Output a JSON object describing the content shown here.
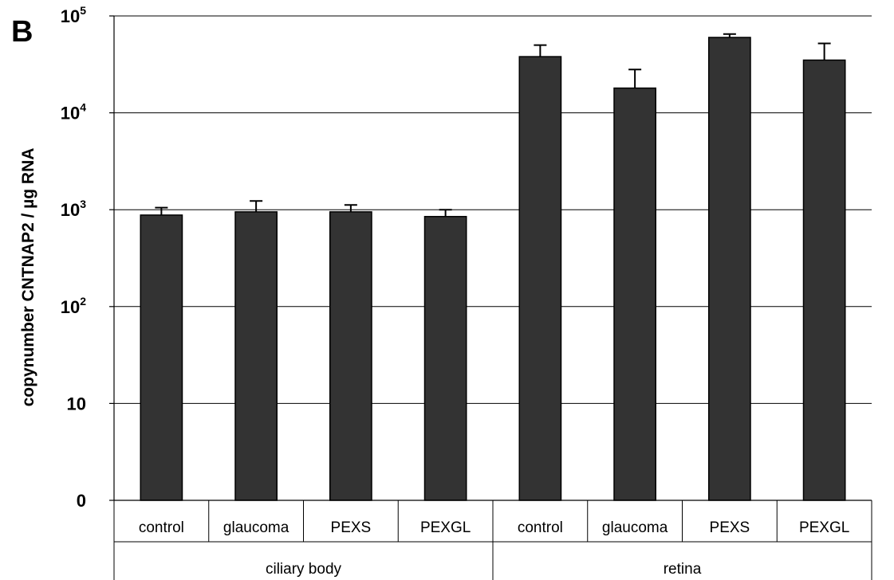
{
  "panel_label": "B",
  "chart_data": {
    "type": "bar",
    "scale": "log",
    "ylabel": "copynumber CNTNAP2 / µg RNA",
    "ylim": [
      1,
      100000
    ],
    "y_ticks": [
      {
        "value": 1,
        "base": "0",
        "exp": ""
      },
      {
        "value": 10,
        "base": "10",
        "exp": ""
      },
      {
        "value": 100,
        "base": "10",
        "exp": "2"
      },
      {
        "value": 1000,
        "base": "10",
        "exp": "3"
      },
      {
        "value": 10000,
        "base": "10",
        "exp": "4"
      },
      {
        "value": 100000,
        "base": "10",
        "exp": "5"
      }
    ],
    "grid": true,
    "groups": [
      {
        "label": "ciliary body",
        "categories": [
          "control",
          "glaucoma",
          "PEXS",
          "PEXGL"
        ]
      },
      {
        "label": "retina",
        "categories": [
          "control",
          "glaucoma",
          "PEXS",
          "PEXGL"
        ]
      }
    ],
    "values": [
      880,
      950,
      950,
      850,
      38000,
      18000,
      60000,
      35000
    ],
    "error_upper": [
      1050,
      1230,
      1120,
      1000,
      50000,
      28000,
      65000,
      52000
    ],
    "bar_color": "#333333"
  }
}
